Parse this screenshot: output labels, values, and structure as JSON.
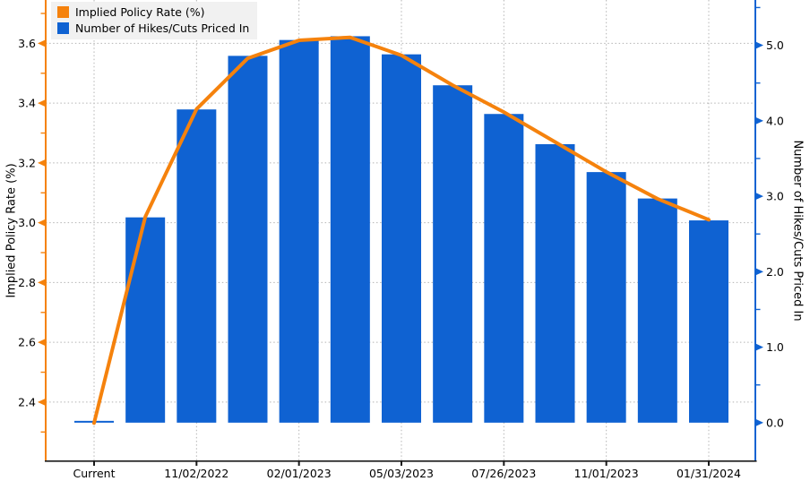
{
  "colors": {
    "line_orange": "#F5820D",
    "bar_blue": "#0F62D2",
    "grid": "#b4b4b4",
    "x_axis": "#1a1a1a",
    "legend_bg": "#f1f1f1",
    "text": "#000000",
    "background": "#ffffff"
  },
  "legend": {
    "items": [
      {
        "label": "Implied Policy Rate (%)",
        "color": "#F5820D"
      },
      {
        "label": "Number of Hikes/Cuts Priced In",
        "color": "#0F62D2"
      }
    ]
  },
  "chart_data": {
    "type": "bar+line",
    "title": "",
    "categories": [
      "Current",
      "",
      "11/02/2022",
      "",
      "02/01/2023",
      "",
      "05/03/2023",
      "",
      "07/26/2023",
      "",
      "11/01/2023",
      "",
      "01/31/2024"
    ],
    "series": [
      {
        "name": "Implied Policy Rate (%)",
        "type": "line",
        "axis": "left",
        "color": "#F5820D",
        "values": [
          2.33,
          3.02,
          3.38,
          3.55,
          3.61,
          3.62,
          3.56,
          3.46,
          3.37,
          3.27,
          3.17,
          3.08,
          3.01
        ]
      },
      {
        "name": "Number of Hikes/Cuts Priced In",
        "type": "bar",
        "axis": "right",
        "color": "#0F62D2",
        "values": [
          0.0,
          2.72,
          4.15,
          4.86,
          5.07,
          5.12,
          4.88,
          4.47,
          4.09,
          3.69,
          3.32,
          2.97,
          2.68
        ]
      }
    ],
    "left_axis": {
      "title": "Implied Policy Rate (%)",
      "color": "#F5820D",
      "range": [
        2.205,
        3.745
      ],
      "major_ticks": [
        2.4,
        2.6,
        2.8,
        3.0,
        3.2,
        3.4,
        3.6
      ],
      "minor_step": 0.1,
      "tick_format": "0.1f"
    },
    "right_axis": {
      "title": "Number of Hikes/Cuts Priced In",
      "color": "#0F62D2",
      "range": [
        -0.5,
        5.6
      ],
      "major_ticks": [
        0.0,
        1.0,
        2.0,
        3.0,
        4.0,
        5.0
      ],
      "minor_step": 0.5,
      "tick_format": "0.1f"
    },
    "grid": "dotted",
    "legend_position": "top-left"
  }
}
